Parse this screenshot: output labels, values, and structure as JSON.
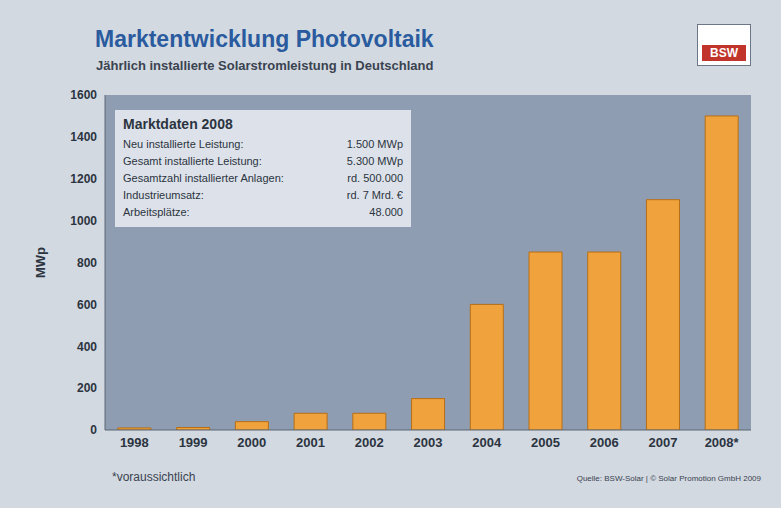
{
  "chart_data": {
    "type": "bar",
    "title": "Marktentwicklung Photovoltaik",
    "subtitle": "Jährlich installierte Solarstromleistung in Deutschland",
    "y_label": "MWp",
    "categories": [
      "1998",
      "1999",
      "2000",
      "2001",
      "2002",
      "2003",
      "2004",
      "2005",
      "2006",
      "2007",
      "2008*"
    ],
    "values": [
      10,
      12,
      40,
      80,
      80,
      150,
      600,
      850,
      850,
      1100,
      1500
    ],
    "color": "#f0a23c",
    "ylim": [
      0,
      1600
    ],
    "yticks": [
      0,
      200,
      400,
      600,
      800,
      1000,
      1200,
      1400,
      1600
    ],
    "grid": false,
    "info_box": {
      "title": "Marktdaten 2008",
      "rows": [
        [
          "Neu installierte Leistung:",
          "1.500 MWp"
        ],
        [
          "Gesamt installierte Leistung:",
          "5.300 MWp"
        ],
        [
          "Gesamtzahl installierter Anlagen:",
          "rd. 500.000"
        ],
        [
          "Industrieumsatz:",
          "rd. 7 Mrd. €"
        ],
        [
          "Arbeitsplätze:",
          "48.000"
        ]
      ]
    },
    "footnote": "*voraussichtlich",
    "source": "Quelle: BSW-Solar | © Solar Promotion GmbH 2009",
    "logo": "BSW"
  }
}
